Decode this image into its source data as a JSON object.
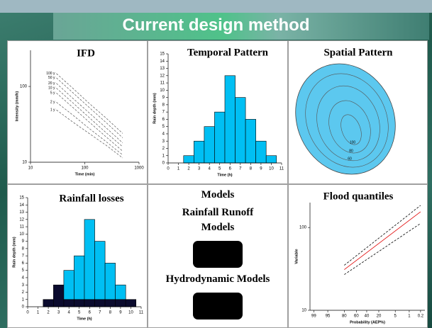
{
  "title": "Current design method",
  "chart_data": [
    {
      "type": "ifd",
      "title": "IFD",
      "xlabel": "Time (min)",
      "ylabel": "Intensity (mm/h)",
      "xscale": "log",
      "yscale": "log",
      "xlim": [
        10,
        1000
      ],
      "ylim": [
        10,
        300
      ],
      "xticks": [
        10,
        100,
        1000
      ],
      "yticks": [
        10,
        100
      ],
      "line_style": "dashed",
      "color": "#555555",
      "x": [
        30,
        60,
        120,
        240,
        500
      ],
      "series": [
        {
          "name": "100 y",
          "values": [
            148,
            95,
            60,
            39,
            24
          ]
        },
        {
          "name": "50 y",
          "values": [
            130,
            83,
            53,
            34,
            21
          ]
        },
        {
          "name": "20 y",
          "values": [
            110,
            70,
            45,
            29,
            18
          ]
        },
        {
          "name": "10 y",
          "values": [
            95,
            61,
            39,
            25,
            16
          ]
        },
        {
          "name": "5 y",
          "values": [
            82,
            53,
            34,
            22,
            14
          ]
        },
        {
          "name": "2 y",
          "values": [
            62,
            42,
            28,
            19,
            12.5
          ]
        },
        {
          "name": "1 y",
          "values": [
            49,
            34,
            24,
            17,
            11.4
          ]
        }
      ]
    },
    {
      "type": "bar",
      "title": "Temporal Pattern",
      "xlabel": "Time (h)",
      "ylabel": "Rain depth (mm)",
      "xlim": [
        0,
        11
      ],
      "ylim": [
        0,
        15
      ],
      "xticks": [
        0,
        1,
        2,
        3,
        4,
        5,
        6,
        7,
        8,
        9,
        10,
        11
      ],
      "yticks": [
        0,
        1,
        2,
        3,
        4,
        5,
        6,
        7,
        8,
        9,
        10,
        11,
        12,
        13,
        14,
        15
      ],
      "bar_width": 1,
      "x": [
        2,
        3,
        4,
        5,
        6,
        7,
        8,
        9,
        10
      ],
      "series": [
        {
          "color": "#00bff3",
          "values": [
            1,
            3,
            5,
            7,
            12,
            9,
            6,
            3,
            1
          ]
        }
      ]
    },
    {
      "type": "contour",
      "title": "Spatial Pattern",
      "color": "#5cc8ef",
      "levels": [
        100,
        80,
        60
      ]
    },
    {
      "type": "bar",
      "stacked": true,
      "title": "Rainfall losses",
      "xlabel": "Time (h)",
      "ylabel": "Rain depth (mm)",
      "xlim": [
        0,
        11
      ],
      "ylim": [
        0,
        15
      ],
      "xticks": [
        0,
        1,
        2,
        3,
        4,
        5,
        6,
        7,
        8,
        9,
        10,
        11
      ],
      "yticks": [
        0,
        1,
        2,
        3,
        4,
        5,
        6,
        7,
        8,
        9,
        10,
        11,
        12,
        13,
        14,
        15
      ],
      "bar_width": 1,
      "x": [
        2,
        3,
        4,
        5,
        6,
        7,
        8,
        9,
        10
      ],
      "series": [
        {
          "color": "#0b0b2e",
          "values": [
            1,
            3,
            1,
            1,
            1,
            1,
            1,
            1,
            1
          ]
        },
        {
          "color": "#00bff3",
          "values": [
            0,
            0,
            4,
            6,
            11,
            8,
            5,
            2,
            0
          ]
        }
      ]
    },
    {
      "type": "text",
      "title": "Models",
      "items": [
        "Rainfall Runoff Models",
        "Hydrodynamic Models"
      ]
    },
    {
      "type": "quantile",
      "title": "Flood quantiles",
      "xlabel": "Probability (AEP%)",
      "ylabel": "Variable",
      "xscale": "probability",
      "yscale": "log",
      "xlim": [
        99.4,
        0.1
      ],
      "ylim": [
        10,
        200
      ],
      "xticks": [
        99,
        95,
        80,
        60,
        40,
        20,
        5,
        1,
        0.2
      ],
      "yticks": [
        10,
        100
      ],
      "x": [
        80,
        0.2
      ],
      "series": [
        {
          "color": "#e00000",
          "values": [
            31,
            155
          ]
        },
        {
          "color": "#000000",
          "line_style": "dashed",
          "values": [
            35,
            185
          ]
        },
        {
          "color": "#000000",
          "line_style": "dashed",
          "values": [
            27,
            112
          ]
        }
      ]
    }
  ]
}
